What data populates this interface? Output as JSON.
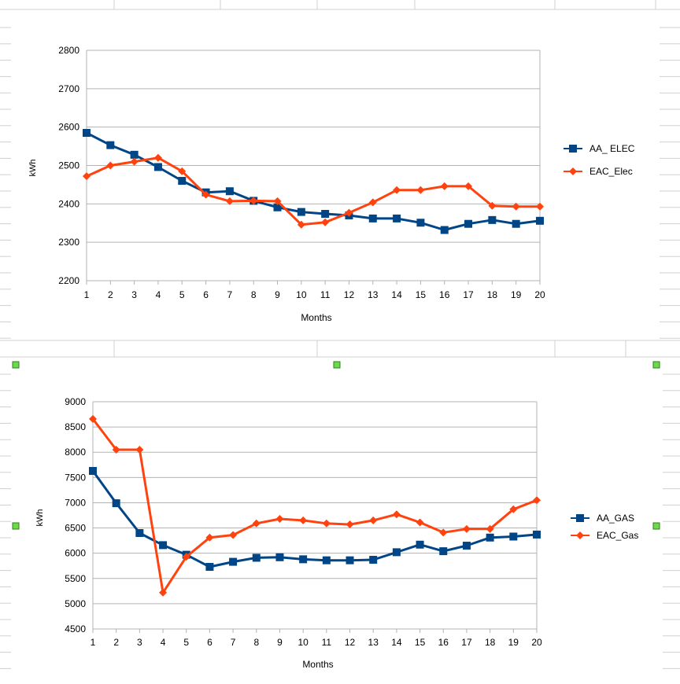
{
  "colors": {
    "series_blue": "#004586",
    "series_orange": "#ff420e",
    "grid": "#b3b3b3",
    "sheet_grid": "#d0d0d0",
    "handle": "#6bdb4a"
  },
  "chart_data": [
    {
      "type": "line",
      "xlabel": "Months",
      "ylabel": "kWh",
      "ylim": [
        2200,
        2800
      ],
      "y_ticks": [
        "2200",
        "2300",
        "2400",
        "2500",
        "2600",
        "2700",
        "2800"
      ],
      "x": [
        "1",
        "2",
        "3",
        "4",
        "5",
        "6",
        "7",
        "8",
        "9",
        "10",
        "11",
        "12",
        "13",
        "14",
        "15",
        "16",
        "17",
        "18",
        "19",
        "20"
      ],
      "grid": "horizontal",
      "legend_position": "right",
      "series": [
        {
          "name": "AA_ ELEC",
          "marker": "square",
          "color": "#004586",
          "values": [
            2585,
            2553,
            2528,
            2496,
            2460,
            2430,
            2433,
            2408,
            2391,
            2379,
            2374,
            2370,
            2362,
            2362,
            2351,
            2332,
            2348,
            2358,
            2348,
            2356
          ]
        },
        {
          "name": "EAC_Elec",
          "marker": "diamond",
          "color": "#ff420e",
          "values": [
            2472,
            2500,
            2510,
            2520,
            2485,
            2424,
            2407,
            2408,
            2407,
            2346,
            2352,
            2377,
            2404,
            2436,
            2436,
            2446,
            2446,
            2395,
            2393,
            2393
          ]
        }
      ]
    },
    {
      "type": "line",
      "xlabel": "Months",
      "ylabel": "kWh",
      "ylim": [
        4500,
        9000
      ],
      "y_ticks": [
        "4500",
        "5000",
        "5500",
        "6000",
        "6500",
        "7000",
        "7500",
        "8000",
        "8500",
        "9000"
      ],
      "x": [
        "1",
        "2",
        "3",
        "4",
        "5",
        "6",
        "7",
        "8",
        "9",
        "10",
        "11",
        "12",
        "13",
        "14",
        "15",
        "16",
        "17",
        "18",
        "19",
        "20"
      ],
      "grid": "horizontal",
      "legend_position": "right",
      "series": [
        {
          "name": "AA_GAS",
          "marker": "square",
          "color": "#004586",
          "values": [
            7630,
            6990,
            6400,
            6160,
            5970,
            5730,
            5830,
            5910,
            5920,
            5880,
            5860,
            5860,
            5870,
            6020,
            6170,
            6040,
            6150,
            6310,
            6330,
            6370
          ]
        },
        {
          "name": "EAC_Gas",
          "marker": "diamond",
          "color": "#ff420e",
          "values": [
            8660,
            8050,
            8050,
            5220,
            5930,
            6310,
            6360,
            6590,
            6680,
            6650,
            6590,
            6570,
            6650,
            6770,
            6610,
            6410,
            6480,
            6480,
            6870,
            7050
          ]
        }
      ]
    }
  ]
}
